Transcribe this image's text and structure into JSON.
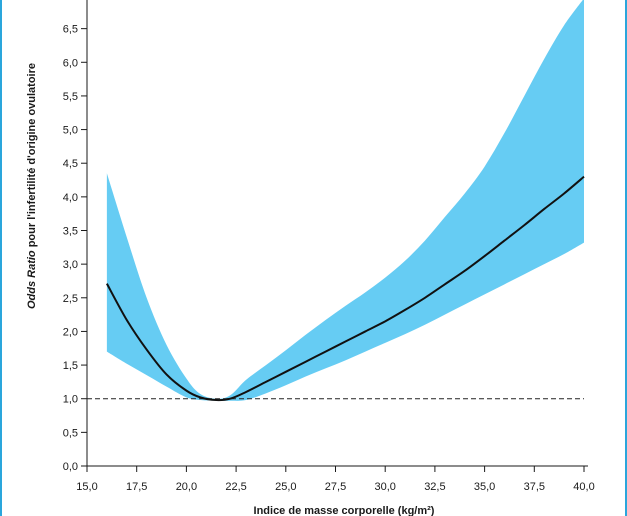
{
  "colors": {
    "band": "#66ccf3",
    "line": "#111111",
    "axis": "#1a1a1a",
    "edge": "#2aa6dc"
  },
  "chart_data": {
    "type": "line",
    "xlabel": "Indice de masse corporelle (kg/m²)",
    "ylabel_italic": "Odds Ratio",
    "ylabel_rest": " pour l'infertilité d'origine ovulatoire",
    "xlim": [
      15.0,
      40.0
    ],
    "ylim": [
      0.0,
      7.0
    ],
    "x_ticks": [
      "15,0",
      "17,5",
      "20,0",
      "22,5",
      "25,0",
      "27,5",
      "30,0",
      "32,5",
      "35,0",
      "37,5",
      "40,0"
    ],
    "x_tick_values": [
      15,
      17.5,
      20,
      22.5,
      25,
      27.5,
      30,
      32.5,
      35,
      37.5,
      40
    ],
    "y_ticks": [
      "0,0",
      "0,5",
      "1,0",
      "1,5",
      "2,0",
      "2,5",
      "3,0",
      "3,5",
      "4,0",
      "4,5",
      "5,0",
      "5,5",
      "6,0",
      "6,5"
    ],
    "y_tick_values": [
      0,
      0.5,
      1,
      1.5,
      2,
      2.5,
      3,
      3.5,
      4,
      4.5,
      5,
      5.5,
      6,
      6.5
    ],
    "reference_line": 1.0,
    "series": [
      {
        "role": "estimate",
        "x": [
          16.0,
          17.0,
          18.0,
          19.0,
          20.0,
          20.7,
          21.5,
          22.2,
          23.0,
          24.0,
          25.0,
          26.0,
          27.0,
          28.0,
          29.0,
          30.0,
          31.0,
          32.0,
          33.0,
          34.0,
          35.0,
          36.0,
          37.0,
          38.0,
          39.0,
          40.0
        ],
        "y": [
          2.71,
          2.17,
          1.73,
          1.36,
          1.12,
          1.02,
          0.98,
          1.0,
          1.1,
          1.25,
          1.4,
          1.55,
          1.7,
          1.85,
          2.0,
          2.15,
          2.32,
          2.5,
          2.7,
          2.9,
          3.12,
          3.35,
          3.58,
          3.82,
          4.05,
          4.3
        ]
      },
      {
        "role": "ci_upper",
        "x": [
          16.0,
          17.0,
          18.0,
          19.0,
          20.0,
          20.7,
          21.5,
          22.2,
          23.0,
          24.0,
          25.0,
          26.0,
          27.0,
          28.0,
          29.0,
          30.0,
          31.0,
          32.0,
          33.0,
          34.0,
          35.0,
          36.0,
          37.0,
          38.0,
          39.0,
          40.0
        ],
        "y": [
          4.35,
          3.4,
          2.5,
          1.8,
          1.3,
          1.07,
          1.0,
          1.05,
          1.28,
          1.5,
          1.72,
          1.95,
          2.17,
          2.38,
          2.58,
          2.8,
          3.05,
          3.35,
          3.7,
          4.05,
          4.45,
          4.95,
          5.5,
          6.05,
          6.55,
          6.95
        ]
      },
      {
        "role": "ci_lower",
        "x": [
          16.0,
          17.0,
          18.0,
          19.0,
          20.0,
          20.7,
          21.5,
          22.2,
          23.0,
          24.0,
          25.0,
          26.0,
          27.0,
          28.0,
          29.0,
          30.0,
          31.0,
          32.0,
          33.0,
          34.0,
          35.0,
          36.0,
          37.0,
          38.0,
          39.0,
          40.0
        ],
        "y": [
          1.7,
          1.52,
          1.35,
          1.18,
          1.02,
          0.98,
          0.97,
          0.97,
          0.98,
          1.08,
          1.2,
          1.33,
          1.45,
          1.57,
          1.7,
          1.83,
          1.96,
          2.1,
          2.25,
          2.4,
          2.55,
          2.7,
          2.85,
          3.0,
          3.15,
          3.32
        ]
      }
    ]
  }
}
